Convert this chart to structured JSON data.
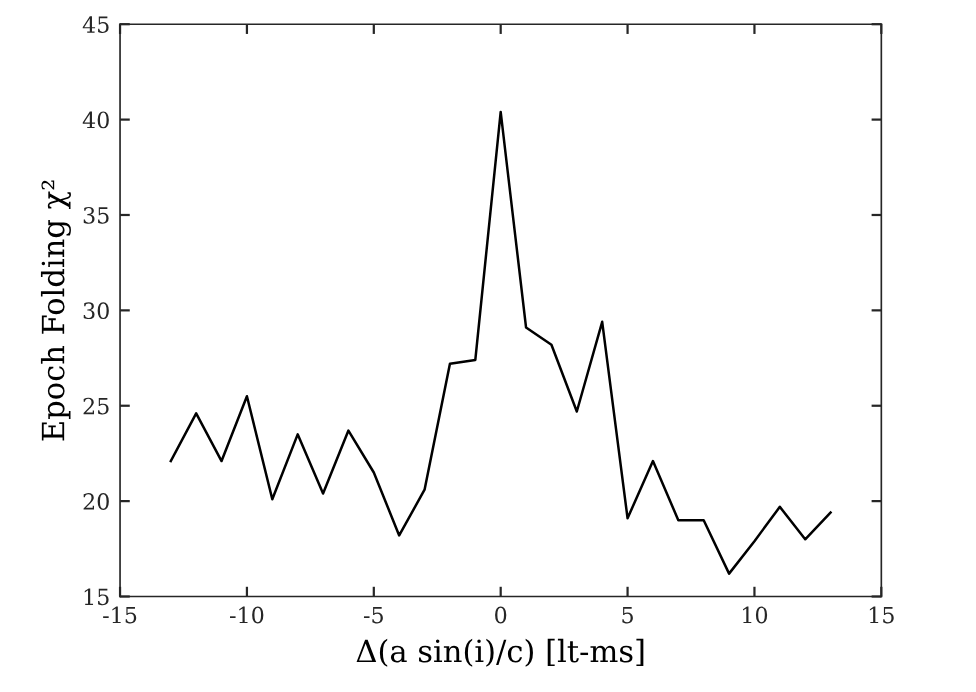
{
  "chart_data": {
    "type": "line",
    "xlabel": "Δ(a sin(i)/c) [lt-ms]",
    "ylabel": "Epoch Folding χ²",
    "x": [
      -13,
      -12,
      -11,
      -10,
      -9,
      -8,
      -7,
      -6,
      -5,
      -4,
      -3,
      -2,
      -1,
      0,
      1,
      2,
      3,
      4,
      5,
      6,
      7,
      8,
      9,
      10,
      11,
      12,
      13
    ],
    "series": [
      {
        "color": "#000000",
        "values": [
          22.1,
          24.6,
          22.1,
          25.5,
          20.1,
          23.5,
          20.4,
          23.7,
          21.5,
          18.2,
          20.6,
          27.2,
          27.4,
          40.4,
          29.1,
          28.2,
          24.7,
          29.4,
          19.1,
          22.1,
          19.0,
          19.0,
          16.2,
          17.9,
          19.7,
          18.0,
          19.4
        ]
      }
    ],
    "xlim": [
      -15,
      15
    ],
    "xticks": [
      -15,
      -10,
      -5,
      0,
      5,
      10,
      15
    ],
    "ylim": [
      15,
      45
    ],
    "yticks": [
      15,
      20,
      25,
      30,
      35,
      40,
      45
    ],
    "grid": false,
    "legend": false,
    "marker": "none",
    "line_style": "solid"
  }
}
